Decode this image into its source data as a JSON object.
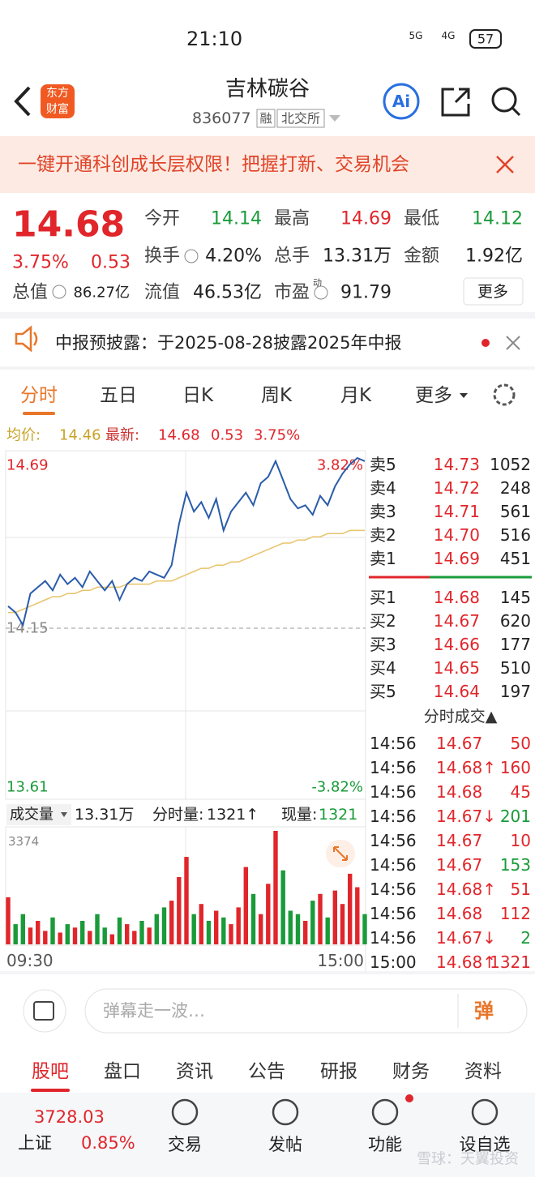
{
  "status": {
    "time": "21:10",
    "net1": "5G",
    "net2": "4G",
    "battery": "57"
  },
  "header": {
    "logo": [
      "东方",
      "财富"
    ],
    "title": "吉林碳谷",
    "code": "836077",
    "tags": [
      "融",
      "北交所"
    ],
    "ai": "Ai"
  },
  "banner": {
    "text": "一键开通科创成长层权限！把握打新、交易机会"
  },
  "quote": {
    "price": "14.68",
    "change_pct": "3.75%",
    "change": "0.53",
    "total_label": "总值",
    "total_value": "86.27亿",
    "fields": [
      {
        "label": "今开",
        "value": "14.14",
        "color": "#1a9b3a"
      },
      {
        "label": "最高",
        "value": "14.69",
        "color": "#e0262b"
      },
      {
        "label": "最低",
        "value": "14.12",
        "color": "#1a9b3a"
      },
      {
        "label": "换手",
        "value": "4.20%"
      },
      {
        "label": "总手",
        "value": "13.31万"
      },
      {
        "label": "金额",
        "value": "1.92亿"
      },
      {
        "label": "流值",
        "value": "46.53亿"
      },
      {
        "label": "市盈",
        "value": "91.79",
        "sup": "动"
      }
    ],
    "more": "更多"
  },
  "notice": {
    "text": "中报预披露：于2025-08-28披露2025年中报"
  },
  "tabs": [
    "分时",
    "五日",
    "日K",
    "周K",
    "月K",
    "更多"
  ],
  "info": {
    "avg_label": "均价:",
    "avg": "14.46",
    "last_label": "最新:",
    "last": "14.68",
    "change": "0.53",
    "change_pct": "3.75%"
  },
  "chart": {
    "ylim": [
      13.61,
      14.69
    ],
    "yticks": [
      13.61,
      14.15,
      14.69
    ],
    "pct_labels": [
      "3.82%",
      "-3.82%"
    ],
    "price_color": "#2a5caa",
    "avg_color": "#e8c36a",
    "price": [
      14.22,
      14.2,
      14.16,
      14.26,
      14.28,
      14.3,
      14.27,
      14.32,
      14.29,
      14.31,
      14.28,
      14.33,
      14.3,
      14.27,
      14.3,
      14.24,
      14.29,
      14.31,
      14.3,
      14.33,
      14.32,
      14.31,
      14.35,
      14.48,
      14.58,
      14.52,
      14.55,
      14.5,
      14.56,
      14.46,
      14.52,
      14.55,
      14.58,
      14.54,
      14.61,
      14.63,
      14.68,
      14.62,
      14.56,
      14.53,
      14.54,
      14.51,
      14.57,
      14.54,
      14.6,
      14.64,
      14.67,
      14.69,
      14.68
    ],
    "avg": [
      14.2,
      14.2,
      14.21,
      14.22,
      14.23,
      14.24,
      14.25,
      14.25,
      14.26,
      14.26,
      14.27,
      14.27,
      14.28,
      14.28,
      14.28,
      14.28,
      14.29,
      14.29,
      14.29,
      14.29,
      14.3,
      14.3,
      14.3,
      14.31,
      14.32,
      14.33,
      14.34,
      14.34,
      14.35,
      14.35,
      14.36,
      14.36,
      14.37,
      14.38,
      14.39,
      14.4,
      14.41,
      14.42,
      14.42,
      14.43,
      14.43,
      14.44,
      14.44,
      14.45,
      14.45,
      14.45,
      14.46,
      14.46,
      14.46
    ],
    "xlabels": [
      "09:30",
      "15:00"
    ]
  },
  "volume": {
    "label": "成交量",
    "total": "13.31万",
    "tick_label": "分时量:",
    "tick_value": "1321↑",
    "now_label": "现量:",
    "now_value": "1321",
    "ylim": [
      0,
      3374
    ],
    "values": [
      1400,
      600,
      900,
      500,
      700,
      400,
      800,
      350,
      600,
      500,
      700,
      400,
      900,
      500,
      300,
      800,
      600,
      400,
      700,
      500,
      900,
      1100,
      1300,
      2000,
      2600,
      900,
      1200,
      700,
      1000,
      800,
      600,
      1100,
      2300,
      1500,
      900,
      1800,
      3374,
      2200,
      1000,
      900,
      700,
      1300,
      1500,
      800,
      1600,
      1200,
      2100,
      1700,
      900
    ]
  },
  "orderbook": {
    "sell": [
      {
        "label": "卖5",
        "price": "14.73",
        "volume": "1052"
      },
      {
        "label": "卖4",
        "price": "14.72",
        "volume": "248"
      },
      {
        "label": "卖3",
        "price": "14.71",
        "volume": "561"
      },
      {
        "label": "卖2",
        "price": "14.70",
        "volume": "516"
      },
      {
        "label": "卖1",
        "price": "14.69",
        "volume": "451"
      }
    ],
    "buy": [
      {
        "label": "买1",
        "price": "14.68",
        "volume": "145"
      },
      {
        "label": "买2",
        "price": "14.67",
        "volume": "620"
      },
      {
        "label": "买3",
        "price": "14.66",
        "volume": "177"
      },
      {
        "label": "买4",
        "price": "14.65",
        "volume": "510"
      },
      {
        "label": "买5",
        "price": "14.64",
        "volume": "197"
      }
    ]
  },
  "trades": {
    "title": "分时成交▲",
    "rows": [
      {
        "time": "14:56",
        "price": "14.67",
        "volume": "50",
        "color": "#e0262b"
      },
      {
        "time": "14:56",
        "price": "14.68↑",
        "volume": "160",
        "color": "#e0262b"
      },
      {
        "time": "14:56",
        "price": "14.68",
        "volume": "45",
        "color": "#e0262b"
      },
      {
        "time": "14:56",
        "price": "14.67↓",
        "volume": "201",
        "color": "#1a9b3a"
      },
      {
        "time": "14:56",
        "price": "14.67",
        "volume": "10",
        "color": "#e0262b"
      },
      {
        "time": "14:56",
        "price": "14.67",
        "volume": "153",
        "color": "#1a9b3a"
      },
      {
        "time": "14:56",
        "price": "14.68↑",
        "volume": "51",
        "color": "#e0262b"
      },
      {
        "time": "14:56",
        "price": "14.68",
        "volume": "112",
        "color": "#e0262b"
      },
      {
        "time": "14:56",
        "price": "14.67↓",
        "volume": "2",
        "color": "#1a9b3a"
      },
      {
        "time": "15:00",
        "price": "14.68↑",
        "volume": "1321",
        "color": "#e0262b"
      }
    ]
  },
  "comment": {
    "placeholder": "弹幕走一波…",
    "button": "弹"
  },
  "bottom_tabs": [
    "股吧",
    "盘口",
    "资讯",
    "公告",
    "研报",
    "财务",
    "资料"
  ],
  "nav": {
    "index_value": "3728.03",
    "index_name": "上证",
    "index_change": "0.85%",
    "items": [
      "交易",
      "发帖",
      "功能",
      "设自选"
    ],
    "watermark": "雪球：天翼投资"
  }
}
